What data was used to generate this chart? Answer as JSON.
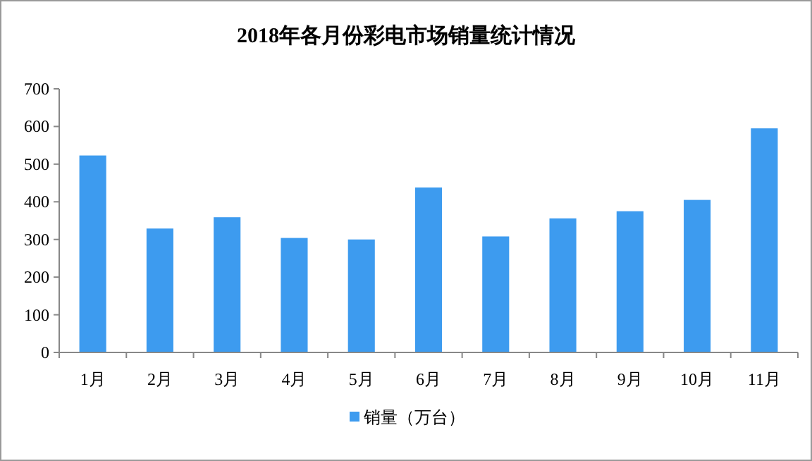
{
  "chart_data": {
    "type": "bar",
    "title": "2018年各月份彩电市场销量统计情况",
    "categories": [
      "1月",
      "2月",
      "3月",
      "4月",
      "5月",
      "6月",
      "7月",
      "8月",
      "9月",
      "10月",
      "11月"
    ],
    "series": [
      {
        "name": "销量（万台）",
        "color": "#3d9bef",
        "values": [
          523,
          329,
          359,
          304,
          300,
          438,
          308,
          356,
          375,
          405,
          595
        ]
      }
    ],
    "ylim": [
      0,
      700
    ],
    "yticks": [
      0,
      100,
      200,
      300,
      400,
      500,
      600,
      700
    ],
    "grid": false,
    "legend": "bottom"
  }
}
